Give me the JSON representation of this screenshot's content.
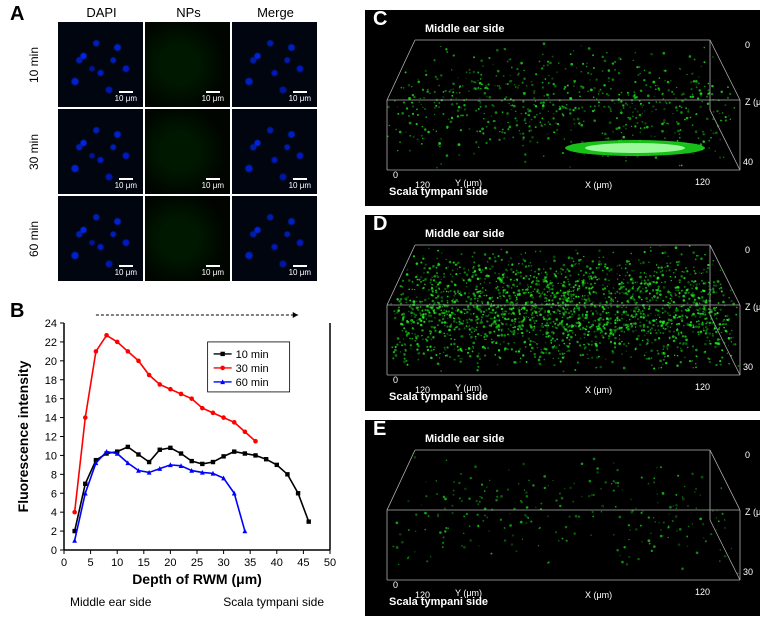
{
  "panelA": {
    "label": "A",
    "columns": [
      "DAPI",
      "NPs",
      "Merge"
    ],
    "rows": [
      "10 min",
      "30 min",
      "60 min"
    ],
    "scale_text": "10 μm",
    "scale_color": "#ffffff"
  },
  "panelB": {
    "label": "B",
    "type": "line",
    "xlabel": "Depth of RWM (μm)",
    "ylabel": "Fluorescence intensity",
    "xlim": [
      0,
      50
    ],
    "ylim": [
      0,
      24
    ],
    "xtick_step": 5,
    "ytick_step": 2,
    "label_fontsize": 14,
    "tick_fontsize": 11,
    "legend_position": "top-right",
    "bottom_left_label": "Middle ear side",
    "bottom_right_label": "Scala tympani side",
    "series": [
      {
        "name": "10 min",
        "color": "#000000",
        "marker": "square",
        "x": [
          2,
          4,
          6,
          8,
          10,
          12,
          14,
          16,
          18,
          20,
          22,
          24,
          26,
          28,
          30,
          32,
          34,
          36,
          38,
          40,
          42,
          44,
          46
        ],
        "y": [
          2,
          7,
          9.5,
          10.2,
          10.4,
          10.9,
          10.1,
          9.3,
          10.6,
          10.8,
          10.2,
          9.4,
          9.1,
          9.3,
          9.9,
          10.4,
          10.2,
          10,
          9.6,
          9,
          8,
          6,
          3
        ]
      },
      {
        "name": "30 min",
        "color": "#ff0000",
        "marker": "circle",
        "x": [
          2,
          4,
          6,
          8,
          10,
          12,
          14,
          16,
          18,
          20,
          22,
          24,
          26,
          28,
          30,
          32,
          34,
          36
        ],
        "y": [
          4,
          14,
          21,
          22.7,
          22,
          21,
          20,
          18.5,
          17.5,
          17,
          16.5,
          16,
          15,
          14.5,
          14,
          13.5,
          12.5,
          11.5
        ]
      },
      {
        "name": "60 min",
        "color": "#0000ff",
        "marker": "triangle",
        "x": [
          2,
          4,
          6,
          8,
          10,
          12,
          14,
          16,
          18,
          20,
          22,
          24,
          26,
          28,
          30,
          32,
          34
        ],
        "y": [
          1,
          6,
          9.2,
          10.4,
          10.2,
          9.2,
          8.4,
          8.2,
          8.6,
          9,
          8.9,
          8.4,
          8.2,
          8.1,
          7.6,
          6,
          2
        ]
      }
    ],
    "background_color": "#ffffff",
    "arrow_color": "#000000"
  },
  "panelC": {
    "label": "C",
    "top_label": "Middle ear side",
    "bottom_label": "Scala tympani side",
    "x_label": "X (μm)",
    "x_max": 120,
    "y_label": "Y (μm)",
    "y_max": 120,
    "z_label": "Z (μm)",
    "z_max": 40,
    "particle_color": "#1fef1f",
    "background_color": "#000000",
    "label_color": "#ffffff",
    "fontsize": 11,
    "has_bright_streak": true
  },
  "panelD": {
    "label": "D",
    "top_label": "Middle ear side",
    "bottom_label": "Scala tympani side",
    "x_label": "X (μm)",
    "x_max": 120,
    "y_label": "Y (μm)",
    "y_max": 120,
    "z_label": "Z (μm)",
    "z_max": 30,
    "particle_color": "#22ff22",
    "background_color": "#000000",
    "label_color": "#ffffff",
    "fontsize": 11,
    "density": "high"
  },
  "panelE": {
    "label": "E",
    "top_label": "Middle ear side",
    "bottom_label": "Scala tympani side",
    "x_label": "X (μm)",
    "x_max": 120,
    "y_label": "Y (μm)",
    "y_max": 120,
    "z_label": "Z (μm)",
    "z_max": 30,
    "particle_color": "#18d018",
    "background_color": "#000000",
    "label_color": "#ffffff",
    "fontsize": 11,
    "density": "low"
  }
}
